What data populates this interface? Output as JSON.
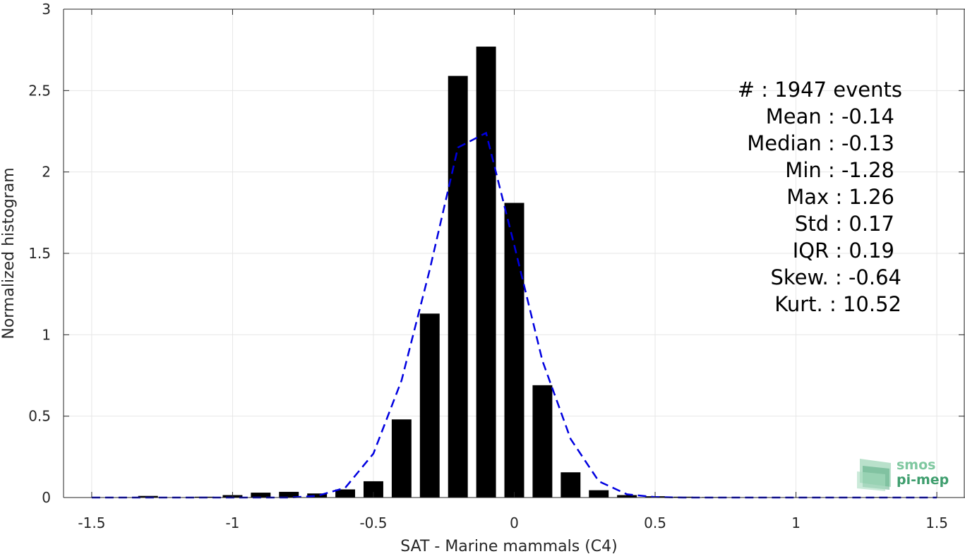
{
  "chart_data": {
    "type": "bar",
    "xlabel": "SAT - Marine mammals (C4)",
    "ylabel": "Normalized histogram",
    "xlim": [
      -1.6,
      1.6
    ],
    "ylim": [
      0,
      3
    ],
    "xticks": [
      -1.5,
      -1,
      -0.5,
      0,
      0.5,
      1,
      1.5
    ],
    "xtick_labels": [
      "-1.5",
      "-1",
      "-0.5",
      "0",
      "0.5",
      "1",
      "1.5"
    ],
    "yticks": [
      0,
      0.5,
      1,
      1.5,
      2,
      2.5,
      3
    ],
    "ytick_labels": [
      "0",
      "0.5",
      "1",
      "1.5",
      "2",
      "2.5",
      "3"
    ],
    "grid": true,
    "bar_width": 0.07,
    "bars": [
      {
        "x": -1.5,
        "y": 0.0
      },
      {
        "x": -1.4,
        "y": 0.0
      },
      {
        "x": -1.3,
        "y": 0.01
      },
      {
        "x": -1.2,
        "y": 0.0
      },
      {
        "x": -1.1,
        "y": 0.005
      },
      {
        "x": -1.0,
        "y": 0.015
      },
      {
        "x": -0.9,
        "y": 0.03
      },
      {
        "x": -0.8,
        "y": 0.035
      },
      {
        "x": -0.7,
        "y": 0.025
      },
      {
        "x": -0.6,
        "y": 0.05
      },
      {
        "x": -0.5,
        "y": 0.1
      },
      {
        "x": -0.4,
        "y": 0.48
      },
      {
        "x": -0.3,
        "y": 1.13
      },
      {
        "x": -0.2,
        "y": 2.59
      },
      {
        "x": -0.1,
        "y": 2.77
      },
      {
        "x": 0.0,
        "y": 1.81
      },
      {
        "x": 0.1,
        "y": 0.69
      },
      {
        "x": 0.2,
        "y": 0.155
      },
      {
        "x": 0.3,
        "y": 0.045
      },
      {
        "x": 0.4,
        "y": 0.015
      },
      {
        "x": 0.5,
        "y": 0.008
      },
      {
        "x": 0.6,
        "y": 0.005
      },
      {
        "x": 0.7,
        "y": 0.003
      },
      {
        "x": 0.8,
        "y": 0.0
      },
      {
        "x": 0.9,
        "y": 0.0
      },
      {
        "x": 1.0,
        "y": 0.0
      },
      {
        "x": 1.1,
        "y": 0.0
      },
      {
        "x": 1.2,
        "y": 0.0
      },
      {
        "x": 1.3,
        "y": 0.003
      },
      {
        "x": 1.4,
        "y": 0.0
      },
      {
        "x": 1.5,
        "y": 0.0
      }
    ],
    "fit_curve": {
      "style": "dashed",
      "color": "#0000e0",
      "x": [
        -1.5,
        -1.4,
        -1.3,
        -1.2,
        -1.1,
        -1.0,
        -0.9,
        -0.8,
        -0.7,
        -0.6,
        -0.5,
        -0.4,
        -0.3,
        -0.2,
        -0.1,
        0.0,
        0.1,
        0.2,
        0.3,
        0.4,
        0.5,
        0.6,
        0.7,
        0.8,
        0.9,
        1.0,
        1.1,
        1.2,
        1.3,
        1.4,
        1.5
      ],
      "y": [
        0.0,
        0.0,
        0.0,
        0.0,
        0.0,
        0.0,
        0.0,
        0.0,
        0.01,
        0.06,
        0.27,
        0.72,
        1.4,
        2.15,
        2.24,
        1.55,
        0.84,
        0.36,
        0.1,
        0.02,
        0.003,
        0.0,
        0.0,
        0.0,
        0.0,
        0.0,
        0.0,
        0.0,
        0.0,
        0.0,
        0.0
      ]
    },
    "bar_color": "#000000"
  },
  "stats": [
    {
      "label": "#  : 1947 events"
    },
    {
      "label": "Mean : -0.14"
    },
    {
      "label": "Median : -0.13"
    },
    {
      "label": "Min : -1.28"
    },
    {
      "label": "Max : 1.26"
    },
    {
      "label": "Std : 0.17"
    },
    {
      "label": "IQR : 0.19"
    },
    {
      "label": "Skew. : -0.64"
    },
    {
      "label": "Kurt. : 10.52"
    }
  ],
  "logo": {
    "line1": "smos",
    "line2": "pi-mep",
    "color1": "#7fc8a0",
    "color2": "#3f9e6e"
  }
}
